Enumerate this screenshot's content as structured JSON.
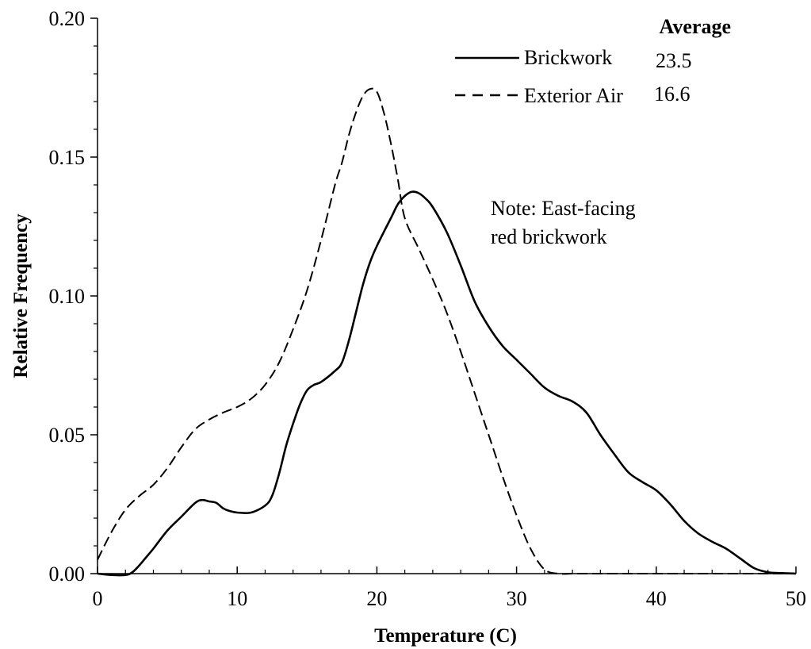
{
  "chart_data": {
    "type": "line",
    "title": "",
    "xlabel": "Temperature (C)",
    "ylabel": "Relative Frequency",
    "xlim": [
      0,
      50
    ],
    "ylim": [
      0,
      0.2
    ],
    "x_ticks": [
      "0",
      "10",
      "20",
      "30",
      "40",
      "50"
    ],
    "y_ticks": [
      "0.00",
      "0.05",
      "0.10",
      "0.15",
      "0.20"
    ],
    "grid": false,
    "legend": {
      "placement": "top-right",
      "title": "Average",
      "entries": [
        {
          "name": "Brickwork",
          "style": "solid",
          "average": "23.5"
        },
        {
          "name": "Exterior Air",
          "style": "dashed",
          "average": "16.6"
        }
      ]
    },
    "annotation": [
      "Note: East-facing",
      "red brickwork"
    ],
    "series": [
      {
        "name": "Brickwork",
        "style": "solid",
        "x": [
          0,
          1,
          2,
          2.5,
          3,
          3.5,
          4,
          5,
          6,
          7,
          7.5,
          8,
          8.5,
          9,
          9.5,
          10,
          11,
          12,
          12.5,
          13,
          13.5,
          14,
          14.5,
          15,
          15.5,
          16,
          17,
          17.5,
          18,
          18.5,
          19,
          19.5,
          20,
          21,
          21.5,
          22,
          22.5,
          23,
          23.5,
          24,
          25,
          26,
          27,
          28,
          29,
          30,
          31,
          32,
          33,
          34,
          35,
          36,
          37,
          38,
          39,
          40,
          41,
          42,
          43,
          44,
          45,
          46,
          47,
          48,
          49,
          50
        ],
        "values": [
          0.0,
          -0.0005,
          -0.0005,
          0.0005,
          0.003,
          0.006,
          0.009,
          0.0155,
          0.0205,
          0.0255,
          0.0265,
          0.026,
          0.0255,
          0.0235,
          0.0225,
          0.022,
          0.022,
          0.0245,
          0.028,
          0.036,
          0.046,
          0.054,
          0.061,
          0.066,
          0.068,
          0.069,
          0.073,
          0.076,
          0.084,
          0.094,
          0.104,
          0.112,
          0.118,
          0.128,
          0.133,
          0.136,
          0.1375,
          0.137,
          0.135,
          0.132,
          0.123,
          0.111,
          0.098,
          0.089,
          0.082,
          0.077,
          0.072,
          0.067,
          0.064,
          0.062,
          0.058,
          0.05,
          0.043,
          0.0365,
          0.033,
          0.03,
          0.025,
          0.019,
          0.0145,
          0.0115,
          0.009,
          0.0055,
          0.002,
          0.0005,
          0.0002,
          0.0
        ]
      },
      {
        "name": "Exterior Air",
        "style": "dashed",
        "x": [
          0,
          1,
          2,
          3,
          4,
          5,
          6,
          7,
          8,
          9,
          10,
          11,
          12,
          13,
          14,
          15,
          16,
          17,
          17.5,
          18,
          18.5,
          19,
          19.5,
          20,
          20.5,
          21,
          21.5,
          22,
          23,
          24,
          25,
          26,
          27,
          28,
          29,
          30,
          31,
          32,
          33,
          34,
          35,
          40,
          45,
          50
        ],
        "values": [
          0.005,
          0.015,
          0.023,
          0.028,
          0.032,
          0.038,
          0.0455,
          0.052,
          0.0555,
          0.058,
          0.06,
          0.063,
          0.068,
          0.076,
          0.088,
          0.102,
          0.12,
          0.14,
          0.148,
          0.158,
          0.166,
          0.172,
          0.1745,
          0.1735,
          0.166,
          0.155,
          0.142,
          0.128,
          0.117,
          0.106,
          0.094,
          0.08,
          0.065,
          0.05,
          0.035,
          0.021,
          0.009,
          0.0015,
          0.0,
          0.0,
          0.0,
          0.0,
          0.0,
          0.0
        ]
      }
    ]
  }
}
